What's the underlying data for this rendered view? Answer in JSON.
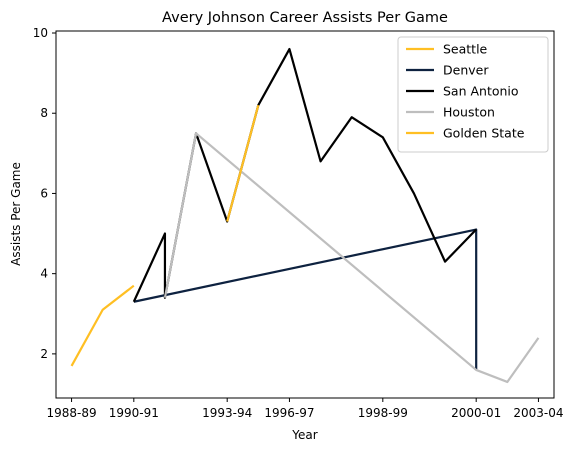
{
  "chart_data": {
    "type": "line",
    "title": "Avery Johnson Career Assists Per Game",
    "xlabel": "Year",
    "ylabel": "Assists Per Game",
    "xlim": [
      -0.5,
      15.5
    ],
    "ylim": [
      0.9,
      10.05
    ],
    "x_ticks": [
      {
        "x": 0,
        "label": "1988-89"
      },
      {
        "x": 2,
        "label": "1990-91"
      },
      {
        "x": 5,
        "label": "1993-94"
      },
      {
        "x": 7,
        "label": "1996-97"
      },
      {
        "x": 10,
        "label": "1998-99"
      },
      {
        "x": 13,
        "label": "2000-01"
      },
      {
        "x": 15,
        "label": "2003-04"
      }
    ],
    "y_ticks": [
      2,
      4,
      6,
      8,
      10
    ],
    "grid": false,
    "legend_position": "top-right",
    "series": [
      {
        "name": "Seattle",
        "color": "#FFBF23",
        "points": [
          [
            0,
            1.7
          ],
          [
            1,
            3.1
          ],
          [
            2,
            3.7
          ]
        ]
      },
      {
        "name": "Denver",
        "color": "#0E2240",
        "points": [
          [
            2,
            3.3
          ],
          [
            13,
            5.1
          ],
          [
            13,
            1.6
          ]
        ]
      },
      {
        "name": "San Antonio",
        "color": "#000000",
        "points": [
          [
            2,
            3.3
          ],
          [
            3,
            5.0
          ],
          [
            3,
            3.4
          ],
          [
            4,
            7.5
          ],
          [
            5,
            5.3
          ],
          [
            6,
            8.2
          ],
          [
            7,
            9.6
          ],
          [
            8,
            6.8
          ],
          [
            9,
            7.9
          ],
          [
            10,
            7.4
          ],
          [
            11,
            6.0
          ],
          [
            12,
            4.3
          ],
          [
            13,
            5.1
          ]
        ]
      },
      {
        "name": "Houston",
        "color": "#BEBEBE",
        "points": [
          [
            3,
            3.4
          ],
          [
            4,
            7.5
          ],
          [
            13,
            1.6
          ],
          [
            14,
            1.3
          ],
          [
            15,
            2.4
          ]
        ]
      },
      {
        "name": "Golden State",
        "color": "#FFBF23",
        "points": [
          [
            5,
            5.3
          ],
          [
            6,
            8.2
          ]
        ]
      }
    ]
  }
}
